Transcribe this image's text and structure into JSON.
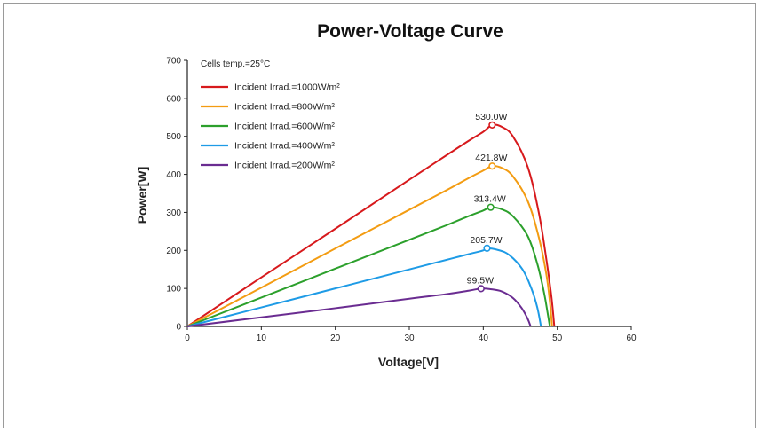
{
  "chart_data": {
    "type": "line",
    "title": "Power-Voltage Curve",
    "xlabel": "Voltage[V]",
    "ylabel": "Power[W]",
    "xlim": [
      0,
      60
    ],
    "ylim": [
      0,
      700
    ],
    "xticks": [
      0,
      10,
      20,
      30,
      40,
      50,
      60
    ],
    "yticks": [
      0,
      100,
      200,
      300,
      400,
      500,
      600,
      700
    ],
    "grid": false,
    "legend_position": "top-left",
    "note": "Cells temp.=25°C",
    "series": [
      {
        "name": "Incident Irrad.=1000W/m²",
        "color": "#d7191c",
        "peak": {
          "x": 41.2,
          "y": 530.0,
          "label": "530.0W"
        },
        "points": [
          [
            0,
            0
          ],
          [
            10,
            129
          ],
          [
            20,
            257
          ],
          [
            30,
            386
          ],
          [
            35,
            450
          ],
          [
            38,
            488
          ],
          [
            40,
            512
          ],
          [
            41.2,
            530
          ],
          [
            42.5,
            525
          ],
          [
            44,
            500
          ],
          [
            46,
            420
          ],
          [
            47.5,
            300
          ],
          [
            48.5,
            180
          ],
          [
            49.2,
            80
          ],
          [
            49.6,
            0
          ]
        ]
      },
      {
        "name": "Incident Irrad.=800W/m²",
        "color": "#f39c12",
        "peak": {
          "x": 41.2,
          "y": 421.8,
          "label": "421.8W"
        },
        "points": [
          [
            0,
            0
          ],
          [
            10,
            102
          ],
          [
            20,
            205
          ],
          [
            30,
            307
          ],
          [
            35,
            358
          ],
          [
            38,
            390
          ],
          [
            40,
            410
          ],
          [
            41.2,
            421.8
          ],
          [
            42.5,
            417
          ],
          [
            44,
            395
          ],
          [
            46,
            330
          ],
          [
            47.5,
            235
          ],
          [
            48.5,
            140
          ],
          [
            49,
            65
          ],
          [
            49.3,
            0
          ]
        ]
      },
      {
        "name": "Incident Irrad.=600W/m²",
        "color": "#2ca02c",
        "peak": {
          "x": 41.0,
          "y": 313.4,
          "label": "313.4W"
        },
        "points": [
          [
            0,
            0
          ],
          [
            10,
            76
          ],
          [
            20,
            152
          ],
          [
            30,
            228
          ],
          [
            35,
            266
          ],
          [
            38,
            290
          ],
          [
            40,
            305
          ],
          [
            41,
            313.4
          ],
          [
            42.5,
            308
          ],
          [
            44,
            290
          ],
          [
            46,
            238
          ],
          [
            47.3,
            165
          ],
          [
            48.2,
            90
          ],
          [
            48.7,
            35
          ],
          [
            49,
            0
          ]
        ]
      },
      {
        "name": "Incident Irrad.=400W/m²",
        "color": "#1e9be6",
        "peak": {
          "x": 40.5,
          "y": 205.7,
          "label": "205.7W"
        },
        "points": [
          [
            0,
            0
          ],
          [
            10,
            50
          ],
          [
            20,
            100
          ],
          [
            30,
            150
          ],
          [
            35,
            175
          ],
          [
            38,
            190
          ],
          [
            40,
            200
          ],
          [
            40.5,
            205.7
          ],
          [
            42,
            201
          ],
          [
            43.5,
            188
          ],
          [
            45.3,
            150
          ],
          [
            46.5,
            100
          ],
          [
            47.3,
            50
          ],
          [
            47.8,
            0
          ]
        ]
      },
      {
        "name": "Incident Irrad.=200W/m²",
        "color": "#6a2c91",
        "peak": {
          "x": 39.7,
          "y": 99.5,
          "label": "99.5W"
        },
        "points": [
          [
            0,
            0
          ],
          [
            10,
            24
          ],
          [
            20,
            48
          ],
          [
            30,
            73
          ],
          [
            35,
            85
          ],
          [
            38,
            94
          ],
          [
            39.7,
            99.5
          ],
          [
            41,
            98
          ],
          [
            42.5,
            92
          ],
          [
            44,
            75
          ],
          [
            45.2,
            48
          ],
          [
            46,
            20
          ],
          [
            46.4,
            0
          ]
        ]
      }
    ]
  }
}
